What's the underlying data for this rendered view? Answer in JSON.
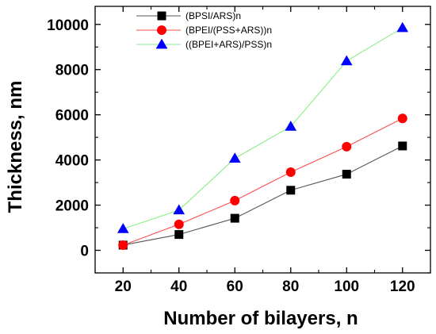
{
  "chart_data": {
    "type": "line",
    "xlabel": "Number of bilayers, n",
    "ylabel": "Thickness, nm",
    "xlim": [
      10,
      130
    ],
    "ylim": [
      -1000,
      10800
    ],
    "x": [
      20,
      40,
      60,
      80,
      100,
      120
    ],
    "xticks": [
      "20",
      "40",
      "60",
      "80",
      "100",
      "120"
    ],
    "yticks": [
      0,
      2000,
      4000,
      6000,
      8000,
      10000
    ],
    "ytick_labels": [
      "0",
      "2000",
      "4000",
      "6000",
      "8000",
      "10000"
    ],
    "grid": false,
    "legend_position": "top-left",
    "series": [
      {
        "name": "(BPSI/ARS)n",
        "marker": "square",
        "color": "#000000",
        "line_color": "#555555",
        "values": [
          230,
          700,
          1420,
          2660,
          3370,
          4620
        ]
      },
      {
        "name": "(BPEI/(PSS+ARS))n",
        "marker": "circle",
        "color": "#ff0000",
        "line_color": "#ff4d4d",
        "values": [
          230,
          1150,
          2200,
          3460,
          4590,
          5840
        ]
      },
      {
        "name": "((BPEI+ARS)/PSS)n",
        "marker": "triangle",
        "color": "#0000ff",
        "line_color": "#88ee88",
        "values": [
          950,
          1780,
          4070,
          5480,
          8380,
          9850
        ]
      }
    ]
  }
}
